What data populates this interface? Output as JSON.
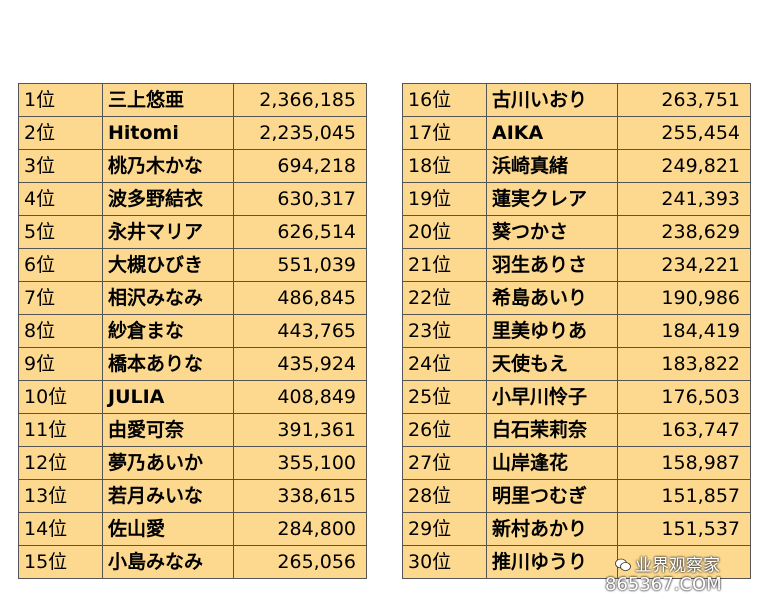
{
  "left_table": [
    {
      "rank": "1位",
      "name": "三上悠亜",
      "count": "2,366,185"
    },
    {
      "rank": "2位",
      "name": "Hitomi",
      "count": "2,235,045"
    },
    {
      "rank": "3位",
      "name": "桃乃木かな",
      "count": "694,218"
    },
    {
      "rank": "4位",
      "name": "波多野結衣",
      "count": "630,317"
    },
    {
      "rank": "5位",
      "name": "永井マリア",
      "count": "626,514"
    },
    {
      "rank": "6位",
      "name": "大槻ひびき",
      "count": "551,039"
    },
    {
      "rank": "7位",
      "name": "相沢みなみ",
      "count": "486,845"
    },
    {
      "rank": "8位",
      "name": "紗倉まな",
      "count": "443,765"
    },
    {
      "rank": "9位",
      "name": "橋本ありな",
      "count": "435,924"
    },
    {
      "rank": "10位",
      "name": "JULIA",
      "count": "408,849"
    },
    {
      "rank": "11位",
      "name": "由愛可奈",
      "count": "391,361"
    },
    {
      "rank": "12位",
      "name": "夢乃あいか",
      "count": "355,100"
    },
    {
      "rank": "13位",
      "name": "若月みいな",
      "count": "338,615"
    },
    {
      "rank": "14位",
      "name": "佐山愛",
      "count": "284,800"
    },
    {
      "rank": "15位",
      "name": "小島みなみ",
      "count": "265,056"
    }
  ],
  "right_table": [
    {
      "rank": "16位",
      "name": "古川いおり",
      "count": "263,751"
    },
    {
      "rank": "17位",
      "name": "AIKA",
      "count": "255,454"
    },
    {
      "rank": "18位",
      "name": "浜崎真緒",
      "count": "249,821"
    },
    {
      "rank": "19位",
      "name": "蓮実クレア",
      "count": "241,393"
    },
    {
      "rank": "20位",
      "name": "葵つかさ",
      "count": "238,629"
    },
    {
      "rank": "21位",
      "name": "羽生ありさ",
      "count": "234,221"
    },
    {
      "rank": "22位",
      "name": "希島あいり",
      "count": "190,986"
    },
    {
      "rank": "23位",
      "name": "里美ゆりあ",
      "count": "184,419"
    },
    {
      "rank": "24位",
      "name": "天使もえ",
      "count": "183,822"
    },
    {
      "rank": "25位",
      "name": "小早川怜子",
      "count": "176,503"
    },
    {
      "rank": "26位",
      "name": "白石茉莉奈",
      "count": "163,747"
    },
    {
      "rank": "27位",
      "name": "山岸逢花",
      "count": "158,987"
    },
    {
      "rank": "28位",
      "name": "明里つむぎ",
      "count": "151,857"
    },
    {
      "rank": "29位",
      "name": "新村あかり",
      "count": "151,537"
    },
    {
      "rank": "30位",
      "name": "推川ゆうり",
      "count": ""
    }
  ],
  "watermark": {
    "line1": "业界观察家",
    "line2": "865367.COM",
    "icon": "wechat-icon"
  },
  "colors": {
    "cell_background": "#fcd98f",
    "border": "#555555"
  }
}
